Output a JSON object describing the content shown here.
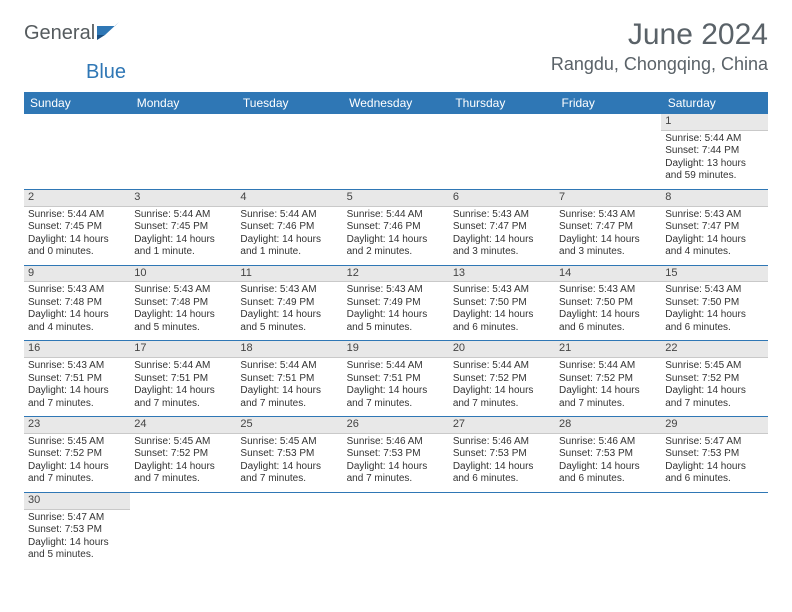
{
  "logo": {
    "part1": "General",
    "part2": "Blue"
  },
  "title": "June 2024",
  "location": "Rangdu, Chongqing, China",
  "colors": {
    "header_bg": "#2f77b5",
    "header_text": "#ffffff",
    "daynum_bg": "#e8e8e8",
    "row_border": "#2f77b5",
    "logo_gray": "#555b5e",
    "logo_blue": "#2f77b5",
    "title_color": "#5a6268"
  },
  "weekdays": [
    "Sunday",
    "Monday",
    "Tuesday",
    "Wednesday",
    "Thursday",
    "Friday",
    "Saturday"
  ],
  "days": {
    "1": {
      "sunrise": "Sunrise: 5:44 AM",
      "sunset": "Sunset: 7:44 PM",
      "daylight": "Daylight: 13 hours and 59 minutes."
    },
    "2": {
      "sunrise": "Sunrise: 5:44 AM",
      "sunset": "Sunset: 7:45 PM",
      "daylight": "Daylight: 14 hours and 0 minutes."
    },
    "3": {
      "sunrise": "Sunrise: 5:44 AM",
      "sunset": "Sunset: 7:45 PM",
      "daylight": "Daylight: 14 hours and 1 minute."
    },
    "4": {
      "sunrise": "Sunrise: 5:44 AM",
      "sunset": "Sunset: 7:46 PM",
      "daylight": "Daylight: 14 hours and 1 minute."
    },
    "5": {
      "sunrise": "Sunrise: 5:44 AM",
      "sunset": "Sunset: 7:46 PM",
      "daylight": "Daylight: 14 hours and 2 minutes."
    },
    "6": {
      "sunrise": "Sunrise: 5:43 AM",
      "sunset": "Sunset: 7:47 PM",
      "daylight": "Daylight: 14 hours and 3 minutes."
    },
    "7": {
      "sunrise": "Sunrise: 5:43 AM",
      "sunset": "Sunset: 7:47 PM",
      "daylight": "Daylight: 14 hours and 3 minutes."
    },
    "8": {
      "sunrise": "Sunrise: 5:43 AM",
      "sunset": "Sunset: 7:47 PM",
      "daylight": "Daylight: 14 hours and 4 minutes."
    },
    "9": {
      "sunrise": "Sunrise: 5:43 AM",
      "sunset": "Sunset: 7:48 PM",
      "daylight": "Daylight: 14 hours and 4 minutes."
    },
    "10": {
      "sunrise": "Sunrise: 5:43 AM",
      "sunset": "Sunset: 7:48 PM",
      "daylight": "Daylight: 14 hours and 5 minutes."
    },
    "11": {
      "sunrise": "Sunrise: 5:43 AM",
      "sunset": "Sunset: 7:49 PM",
      "daylight": "Daylight: 14 hours and 5 minutes."
    },
    "12": {
      "sunrise": "Sunrise: 5:43 AM",
      "sunset": "Sunset: 7:49 PM",
      "daylight": "Daylight: 14 hours and 5 minutes."
    },
    "13": {
      "sunrise": "Sunrise: 5:43 AM",
      "sunset": "Sunset: 7:50 PM",
      "daylight": "Daylight: 14 hours and 6 minutes."
    },
    "14": {
      "sunrise": "Sunrise: 5:43 AM",
      "sunset": "Sunset: 7:50 PM",
      "daylight": "Daylight: 14 hours and 6 minutes."
    },
    "15": {
      "sunrise": "Sunrise: 5:43 AM",
      "sunset": "Sunset: 7:50 PM",
      "daylight": "Daylight: 14 hours and 6 minutes."
    },
    "16": {
      "sunrise": "Sunrise: 5:43 AM",
      "sunset": "Sunset: 7:51 PM",
      "daylight": "Daylight: 14 hours and 7 minutes."
    },
    "17": {
      "sunrise": "Sunrise: 5:44 AM",
      "sunset": "Sunset: 7:51 PM",
      "daylight": "Daylight: 14 hours and 7 minutes."
    },
    "18": {
      "sunrise": "Sunrise: 5:44 AM",
      "sunset": "Sunset: 7:51 PM",
      "daylight": "Daylight: 14 hours and 7 minutes."
    },
    "19": {
      "sunrise": "Sunrise: 5:44 AM",
      "sunset": "Sunset: 7:51 PM",
      "daylight": "Daylight: 14 hours and 7 minutes."
    },
    "20": {
      "sunrise": "Sunrise: 5:44 AM",
      "sunset": "Sunset: 7:52 PM",
      "daylight": "Daylight: 14 hours and 7 minutes."
    },
    "21": {
      "sunrise": "Sunrise: 5:44 AM",
      "sunset": "Sunset: 7:52 PM",
      "daylight": "Daylight: 14 hours and 7 minutes."
    },
    "22": {
      "sunrise": "Sunrise: 5:45 AM",
      "sunset": "Sunset: 7:52 PM",
      "daylight": "Daylight: 14 hours and 7 minutes."
    },
    "23": {
      "sunrise": "Sunrise: 5:45 AM",
      "sunset": "Sunset: 7:52 PM",
      "daylight": "Daylight: 14 hours and 7 minutes."
    },
    "24": {
      "sunrise": "Sunrise: 5:45 AM",
      "sunset": "Sunset: 7:52 PM",
      "daylight": "Daylight: 14 hours and 7 minutes."
    },
    "25": {
      "sunrise": "Sunrise: 5:45 AM",
      "sunset": "Sunset: 7:53 PM",
      "daylight": "Daylight: 14 hours and 7 minutes."
    },
    "26": {
      "sunrise": "Sunrise: 5:46 AM",
      "sunset": "Sunset: 7:53 PM",
      "daylight": "Daylight: 14 hours and 7 minutes."
    },
    "27": {
      "sunrise": "Sunrise: 5:46 AM",
      "sunset": "Sunset: 7:53 PM",
      "daylight": "Daylight: 14 hours and 6 minutes."
    },
    "28": {
      "sunrise": "Sunrise: 5:46 AM",
      "sunset": "Sunset: 7:53 PM",
      "daylight": "Daylight: 14 hours and 6 minutes."
    },
    "29": {
      "sunrise": "Sunrise: 5:47 AM",
      "sunset": "Sunset: 7:53 PM",
      "daylight": "Daylight: 14 hours and 6 minutes."
    },
    "30": {
      "sunrise": "Sunrise: 5:47 AM",
      "sunset": "Sunset: 7:53 PM",
      "daylight": "Daylight: 14 hours and 5 minutes."
    }
  },
  "layout": {
    "first_weekday_index": 6,
    "num_days": 30,
    "cols": 7
  }
}
